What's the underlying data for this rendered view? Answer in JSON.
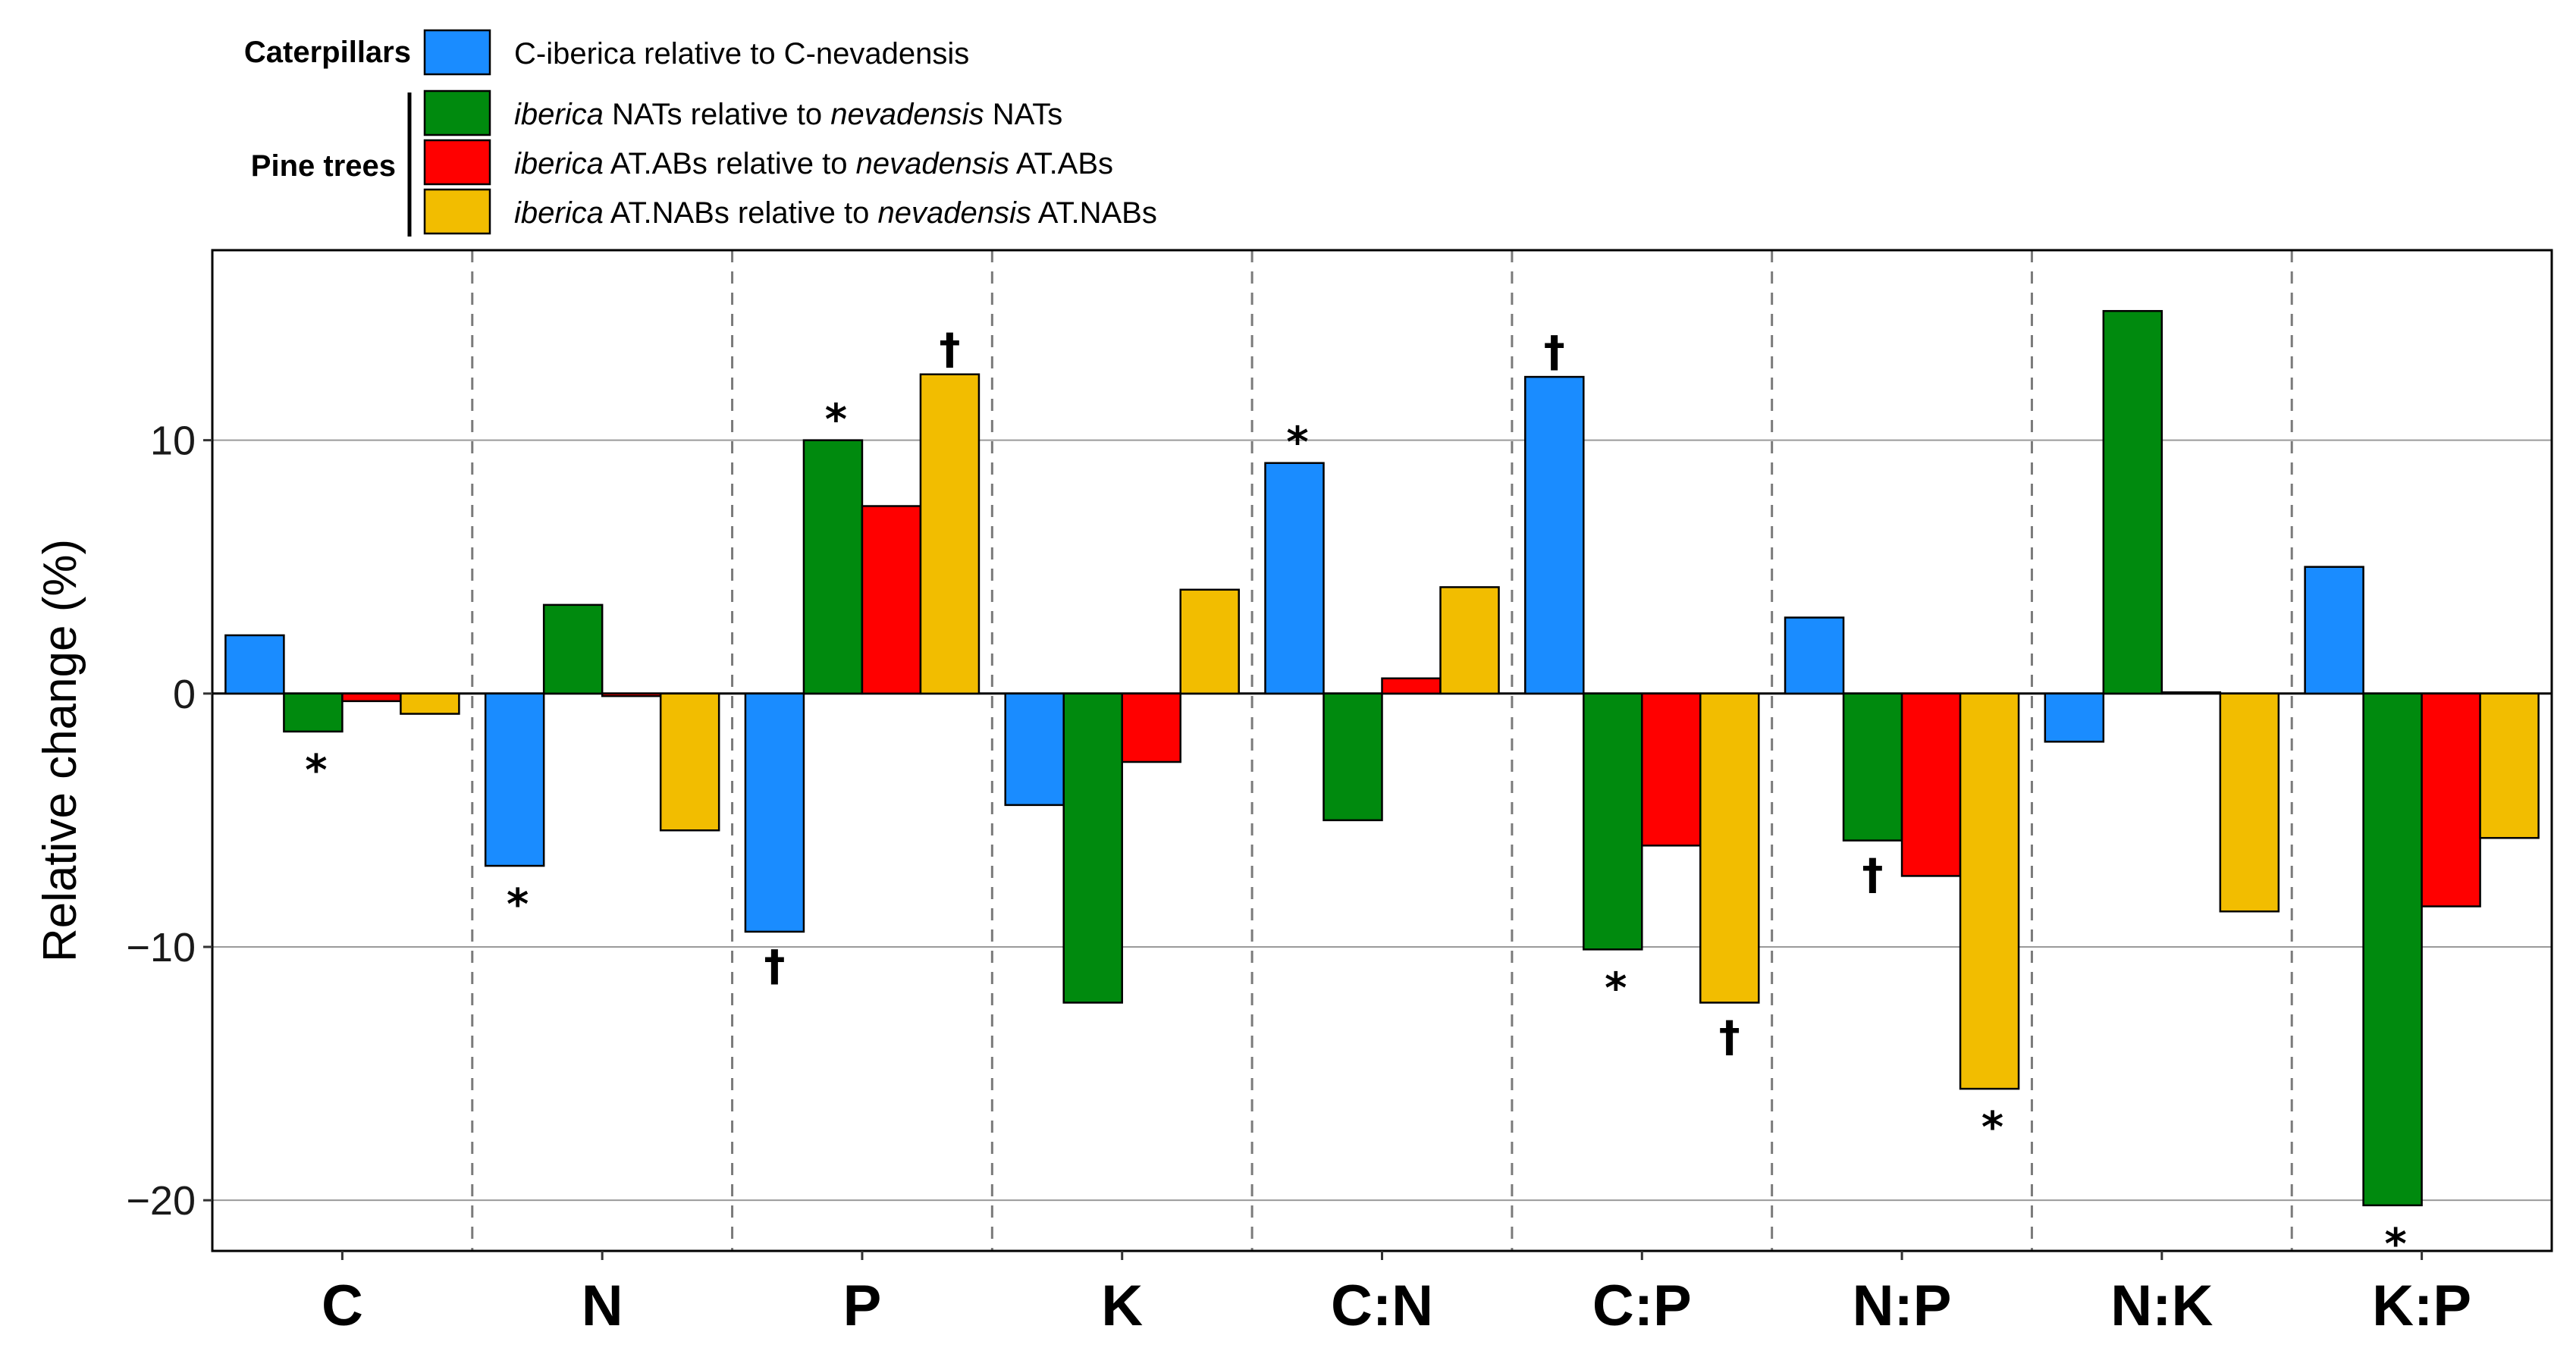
{
  "chart_data": {
    "type": "bar",
    "ylabel": "Relative change (%)",
    "xlabel": "",
    "ylim": [
      -22,
      17.5
    ],
    "yticks": [
      -20,
      -10,
      0,
      10
    ],
    "ytick_labels": [
      "−20",
      "−10",
      "0",
      "10"
    ],
    "grid": "horizontal major lines",
    "legend_position": "top-left",
    "categories": [
      "C",
      "N",
      "P",
      "K",
      "C:N",
      "C:P",
      "N:P",
      "N:K",
      "K:P"
    ],
    "legend_groups": [
      {
        "label": "Caterpillars",
        "series": [
          0
        ]
      },
      {
        "label": "Pine trees",
        "series": [
          1,
          2,
          3
        ]
      }
    ],
    "series": [
      {
        "name": "C-iberica relative to C-nevadensis",
        "legend_parts": [
          {
            "text": "C-iberica relative to C-nevadensis",
            "italic": false
          }
        ],
        "color": "#1a8cff",
        "values": [
          2.3,
          -6.8,
          -9.4,
          -4.4,
          9.1,
          12.5,
          3.0,
          -1.9,
          5.0
        ],
        "markers": [
          "",
          "*",
          "†",
          "",
          "*",
          "†",
          "",
          "",
          ""
        ]
      },
      {
        "name": "iberica NATs relative to nevadensis NATs",
        "legend_parts": [
          {
            "text": "iberica",
            "italic": true
          },
          {
            "text": " NATs relative to ",
            "italic": false
          },
          {
            "text": "nevadensis",
            "italic": true
          },
          {
            "text": " NATs",
            "italic": false
          }
        ],
        "color": "#008a0e",
        "values": [
          -1.5,
          3.5,
          10.0,
          -12.2,
          -5.0,
          -10.1,
          -5.8,
          15.1,
          -20.2
        ],
        "markers": [
          "*",
          "",
          "*",
          "",
          "",
          "*",
          "†",
          "",
          "*"
        ]
      },
      {
        "name": "iberica AT.ABs relative to nevadensis AT.ABs",
        "legend_parts": [
          {
            "text": "iberica",
            "italic": true
          },
          {
            "text": " AT.ABs relative to ",
            "italic": false
          },
          {
            "text": "nevadensis",
            "italic": true
          },
          {
            "text": " AT.ABs",
            "italic": false
          }
        ],
        "color": "#ff0000",
        "values": [
          -0.3,
          -0.1,
          7.4,
          -2.7,
          0.6,
          -6.0,
          -7.2,
          0.05,
          -8.4
        ],
        "markers": [
          "",
          "",
          "",
          "",
          "",
          "",
          "",
          "",
          ""
        ]
      },
      {
        "name": "iberica AT.NABs relative to nevadensis AT.NABs",
        "legend_parts": [
          {
            "text": "iberica",
            "italic": true
          },
          {
            "text": " AT.NABs relative to ",
            "italic": false
          },
          {
            "text": "nevadensis",
            "italic": true
          },
          {
            "text": " AT.NABs",
            "italic": false
          }
        ],
        "color": "#f2bd00",
        "values": [
          -0.8,
          -5.4,
          12.6,
          4.1,
          4.2,
          -12.2,
          -15.6,
          -8.6,
          -5.7
        ],
        "markers": [
          "",
          "",
          "†",
          "",
          "",
          "†",
          "*",
          "",
          ""
        ]
      }
    ]
  }
}
